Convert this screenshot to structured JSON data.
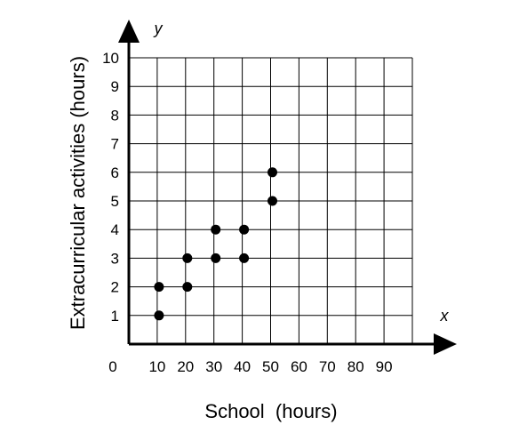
{
  "chart_data": {
    "type": "scatter",
    "xlabel": "School  (hours)",
    "ylabel": "Extracurricular activities (hours)",
    "x_axis_letter": "x",
    "y_axis_letter": "y",
    "origin_label": "0",
    "x_ticks": [
      "10",
      "20",
      "30",
      "40",
      "50",
      "60",
      "70",
      "80",
      "90"
    ],
    "y_ticks": [
      "1",
      "2",
      "3",
      "4",
      "5",
      "6",
      "7",
      "8",
      "9",
      "10"
    ],
    "xlim": [
      0,
      100
    ],
    "ylim": [
      0,
      10
    ],
    "grid": true,
    "points": [
      {
        "x": 10,
        "y": 1
      },
      {
        "x": 10,
        "y": 2
      },
      {
        "x": 20,
        "y": 2
      },
      {
        "x": 20,
        "y": 3
      },
      {
        "x": 30,
        "y": 3
      },
      {
        "x": 30,
        "y": 4
      },
      {
        "x": 40,
        "y": 3
      },
      {
        "x": 40,
        "y": 4
      },
      {
        "x": 50,
        "y": 5
      },
      {
        "x": 50,
        "y": 6
      }
    ]
  }
}
